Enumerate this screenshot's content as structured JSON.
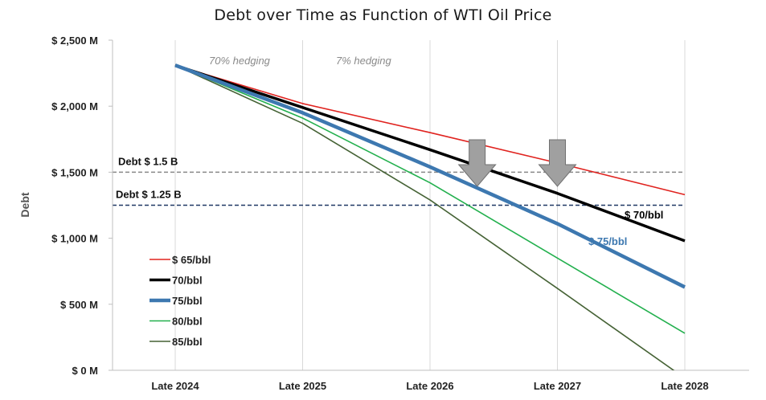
{
  "chart_data": {
    "type": "line",
    "title": "Debt over Time as Function of WTI Oil Price",
    "ylabel": "Debt",
    "xlabel": "",
    "categories": [
      "Late 2024",
      "Late 2025",
      "Late 2026",
      "Late 2027",
      "Late 2028"
    ],
    "ylim": [
      0,
      2500
    ],
    "yticks": [
      {
        "value": 0,
        "label": "$ 0 M"
      },
      {
        "value": 500,
        "label": "$ 500 M"
      },
      {
        "value": 1000,
        "label": "$ 1,000 M"
      },
      {
        "value": 1500,
        "label": "$ 1,500 M"
      },
      {
        "value": 2000,
        "label": "$ 2,000 M"
      },
      {
        "value": 2500,
        "label": "$ 2,500 M"
      }
    ],
    "grid": "vertical",
    "legend_position": "bottom-left",
    "series": [
      {
        "name": "$ 65/bbl",
        "color": "#e0231f",
        "width": 1.6,
        "values": [
          2310,
          2020,
          1800,
          1570,
          1330
        ]
      },
      {
        "name": "70/bbl",
        "color": "#000000",
        "width": 3.5,
        "values": [
          2310,
          1990,
          1670,
          1340,
          980
        ]
      },
      {
        "name": "75/bbl",
        "color": "#3d78b0",
        "width": 4.5,
        "values": [
          2310,
          1950,
          1540,
          1110,
          630
        ]
      },
      {
        "name": "80/bbl",
        "color": "#23b04e",
        "width": 1.6,
        "values": [
          2310,
          1910,
          1420,
          850,
          280
        ]
      },
      {
        "name": "85/bbl",
        "color": "#456235",
        "width": 1.6,
        "values": [
          2310,
          1870,
          1290,
          620,
          -60
        ]
      }
    ],
    "reference_lines": [
      {
        "label": "Debt $ 1.5 B",
        "value": 1500,
        "color": "#888888"
      },
      {
        "label": "Debt $ 1.25 B",
        "value": 1250,
        "color": "#1f3864"
      }
    ],
    "annotations": [
      {
        "text": "70% hedging",
        "x_between": [
          "Late 2024",
          "Late 2025"
        ]
      },
      {
        "text": "7% hedging",
        "x_between": [
          "Late 2025",
          "Late 2026"
        ]
      }
    ],
    "series_labels": [
      {
        "text": "$ 70/bbl",
        "series": "70/bbl",
        "color": "#000000"
      },
      {
        "text": "$ 75/bbl",
        "series": "75/bbl",
        "color": "#3d78b0"
      }
    ],
    "arrows": [
      {
        "x_between": [
          "Late 2026",
          "Late 2027"
        ],
        "fraction": 0.37,
        "pointing": "down",
        "color": "#a0a0a0"
      },
      {
        "x_between": [
          "Late 2026",
          "Late 2027"
        ],
        "fraction": 1.0,
        "pointing": "down",
        "color": "#a0a0a0"
      }
    ]
  }
}
